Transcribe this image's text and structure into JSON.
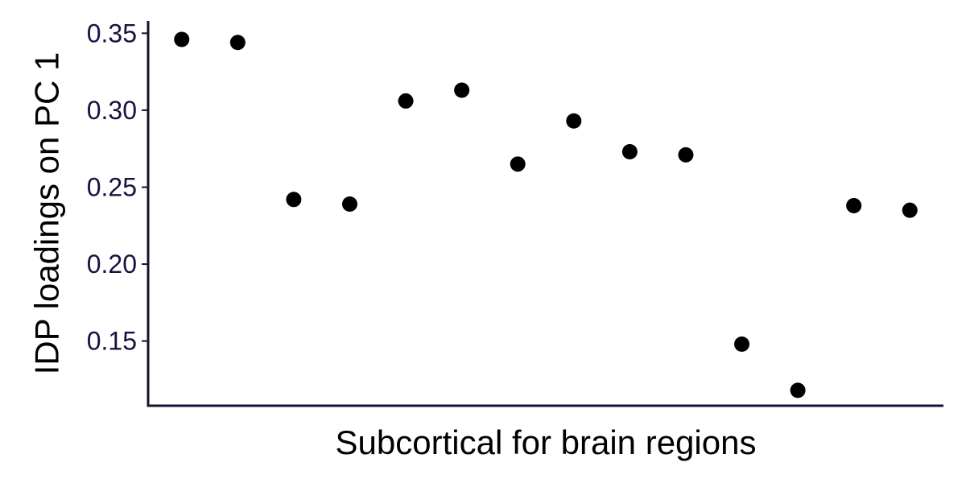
{
  "chart_data": {
    "type": "scatter",
    "title": "",
    "xlabel": "Subcortical for brain regions",
    "ylabel": "IDP loadings on PC 1",
    "ylim": [
      0.108,
      0.358
    ],
    "xlim": [
      0.4,
      14.6
    ],
    "yticks": [
      0.15,
      0.2,
      0.25,
      0.3,
      0.35
    ],
    "ytick_labels": [
      "0.15",
      "0.20",
      "0.25",
      "0.30",
      "0.35"
    ],
    "grid": false,
    "legend": "none",
    "point_color": "#000000",
    "axis_color": "#1a1033",
    "x": [
      1,
      2,
      3,
      4,
      5,
      6,
      7,
      8,
      9,
      10,
      11,
      12,
      13,
      14
    ],
    "values": [
      0.346,
      0.344,
      0.242,
      0.239,
      0.306,
      0.313,
      0.265,
      0.293,
      0.273,
      0.271,
      0.148,
      0.118,
      0.238,
      0.235
    ]
  }
}
